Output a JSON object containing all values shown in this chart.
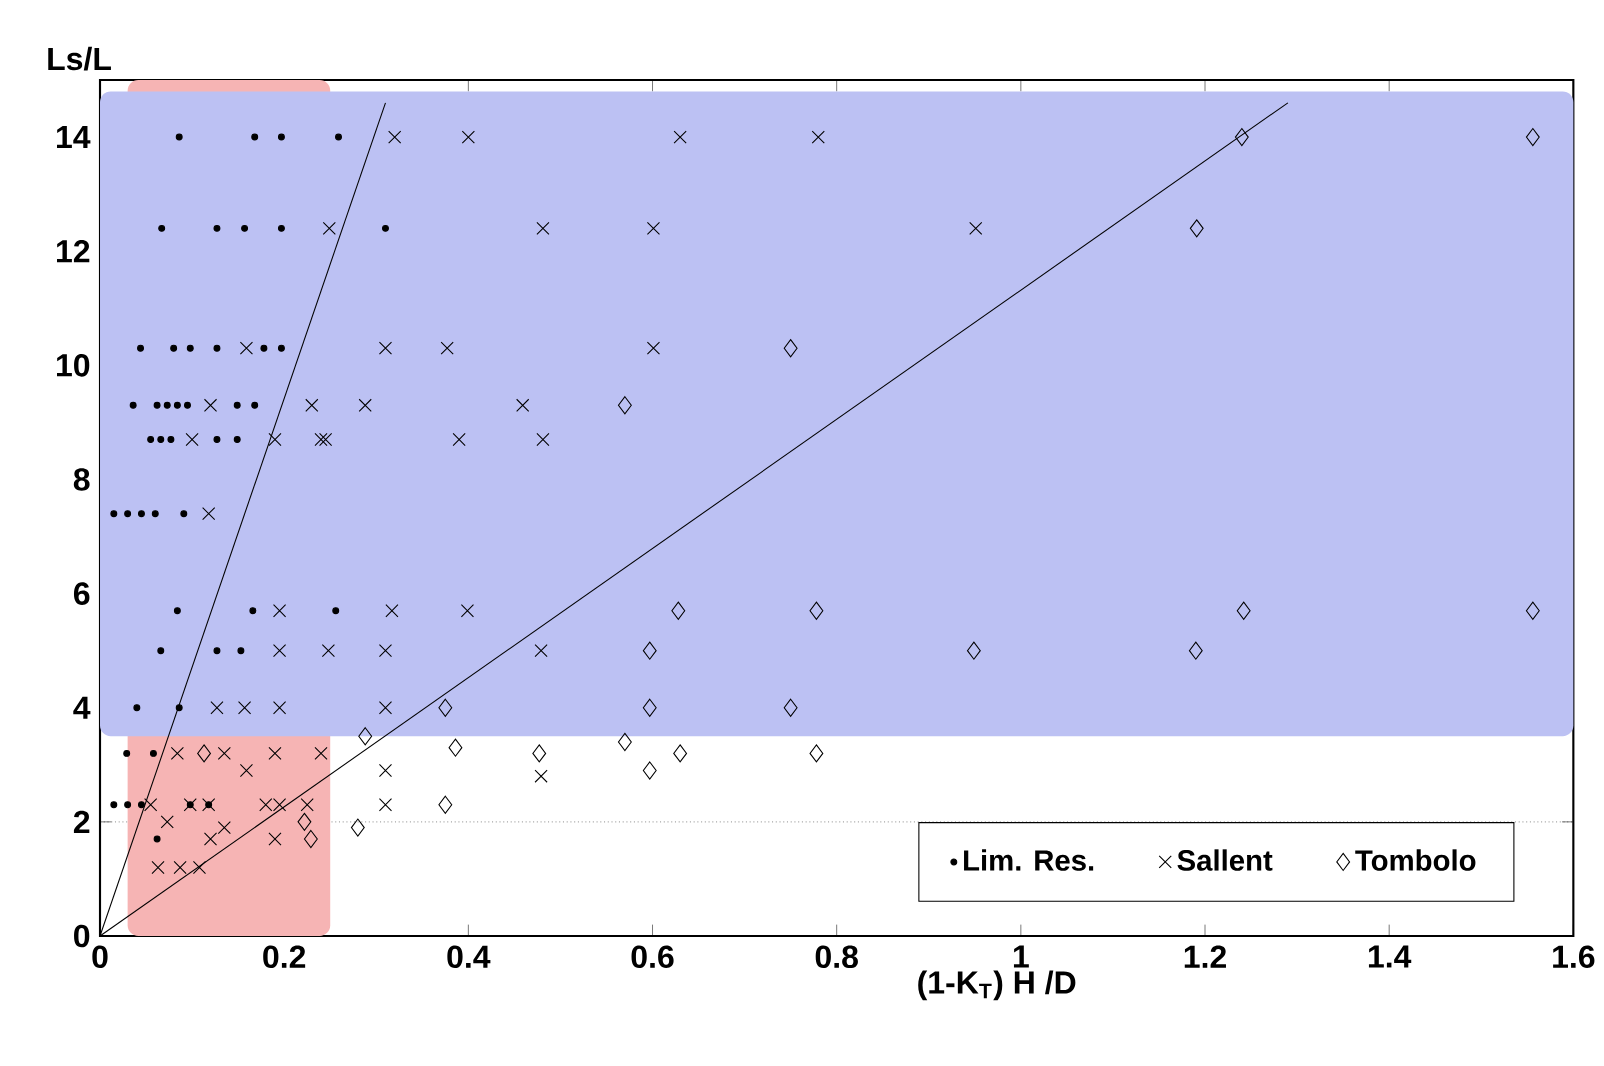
{
  "chart_data": {
    "type": "scatter",
    "xlabel": "(1-K$_{T}$) H /D",
    "ylabel": "Ls/L",
    "xlim": [
      0,
      1.6
    ],
    "ylim": [
      0,
      15
    ],
    "xticks": [
      0,
      0.2,
      0.4,
      0.6,
      0.8,
      1,
      1.2,
      1.4,
      1.6
    ],
    "yticks": [
      0,
      2,
      4,
      6,
      8,
      10,
      12,
      14
    ],
    "grid": "y",
    "legend": "bottom right",
    "series": [
      {
        "name": "Lim. Res.",
        "color": "#000000",
        "marker": "circle",
        "x": [
          0.086,
          0.168,
          0.197,
          0.259,
          0.067,
          0.127,
          0.157,
          0.197,
          0.31,
          0.044,
          0.08,
          0.098,
          0.127,
          0.178,
          0.197,
          0.036,
          0.062,
          0.073,
          0.084,
          0.095,
          0.149,
          0.168,
          0.055,
          0.066,
          0.077,
          0.127,
          0.149,
          0.015,
          0.03,
          0.045,
          0.06,
          0.091,
          0.084,
          0.166,
          0.256,
          0.066,
          0.127,
          0.153,
          0.04,
          0.086,
          0.029,
          0.058,
          0.015,
          0.03,
          0.045,
          0.098,
          0.118,
          0.062
        ],
        "values": [
          14,
          14,
          14,
          14,
          12.4,
          12.4,
          12.4,
          12.4,
          12.4,
          10.3,
          10.3,
          10.3,
          10.3,
          10.3,
          10.3,
          9.3,
          9.3,
          9.3,
          9.3,
          9.3,
          9.3,
          9.3,
          8.7,
          8.7,
          8.7,
          8.7,
          8.7,
          7.4,
          7.4,
          7.4,
          7.4,
          7.4,
          5.7,
          5.7,
          5.7,
          5,
          5,
          5,
          4,
          4,
          3.2,
          3.2,
          2.3,
          2.3,
          2.3,
          2.3,
          2.3,
          1.7
        ]
      },
      {
        "name": "Sallent",
        "color": "#000000",
        "marker": "cross",
        "x": [
          0.32,
          0.4,
          0.63,
          0.78,
          0.249,
          0.481,
          0.601,
          0.951,
          0.159,
          0.31,
          0.377,
          0.601,
          0.12,
          0.23,
          0.288,
          0.459,
          0.1,
          0.19,
          0.24,
          0.245,
          0.39,
          0.481,
          0.118,
          0.195,
          0.317,
          0.399,
          0.195,
          0.248,
          0.31,
          0.479,
          0.127,
          0.157,
          0.195,
          0.31,
          0.084,
          0.135,
          0.19,
          0.24,
          0.159,
          0.31,
          0.479,
          0.055,
          0.098,
          0.118,
          0.18,
          0.195,
          0.225,
          0.31,
          0.073,
          0.135,
          0.12,
          0.19,
          0.063,
          0.087,
          0.108
        ],
        "values": [
          14,
          14,
          14,
          14,
          12.4,
          12.4,
          12.4,
          12.4,
          10.3,
          10.3,
          10.3,
          10.3,
          9.3,
          9.3,
          9.3,
          9.3,
          8.7,
          8.7,
          8.7,
          8.7,
          8.7,
          8.7,
          7.4,
          5.7,
          5.7,
          5.7,
          5,
          5,
          5,
          5,
          4,
          4,
          4,
          4,
          3.2,
          3.2,
          3.2,
          3.2,
          2.9,
          2.9,
          2.8,
          2.3,
          2.3,
          2.3,
          2.3,
          2.3,
          2.3,
          2.3,
          2,
          1.9,
          1.7,
          1.7,
          1.2,
          1.2,
          1.2
        ]
      },
      {
        "name": "Tombolo",
        "color": "#000000",
        "marker": "diamond",
        "x": [
          1.24,
          1.556,
          1.191,
          0.75,
          0.57,
          0.628,
          0.778,
          1.242,
          1.556,
          0.597,
          0.949,
          1.19,
          0.375,
          0.597,
          0.75,
          0.113,
          0.288,
          0.386,
          0.477,
          0.57,
          0.63,
          0.778,
          0.597,
          0.375,
          0.222,
          0.229,
          0.28
        ],
        "values": [
          14,
          14,
          12.4,
          10.3,
          9.3,
          5.7,
          5.7,
          5.7,
          5.7,
          5,
          5,
          5,
          4,
          4,
          4,
          3.2,
          3.5,
          3.3,
          3.2,
          3.4,
          3.2,
          3.2,
          2.9,
          2.3,
          2,
          1.7,
          1.9
        ]
      },
      {
        "type": "line",
        "color": "#000000",
        "marker": "none",
        "line_style": "solid",
        "x": [
          0,
          0.31
        ],
        "values": [
          0,
          14.6
        ]
      },
      {
        "type": "line",
        "color": "#000000",
        "marker": "none",
        "line_style": "solid",
        "x": [
          0,
          1.29
        ],
        "values": [
          0,
          14.6
        ]
      }
    ],
    "bands": [
      {
        "axis": "x",
        "from": 0.03,
        "to": 0.25,
        "color": "#f6b4b4"
      },
      {
        "axis": "y",
        "from": 3.5,
        "to": 14.8,
        "color": "#bcc1f3"
      }
    ]
  }
}
